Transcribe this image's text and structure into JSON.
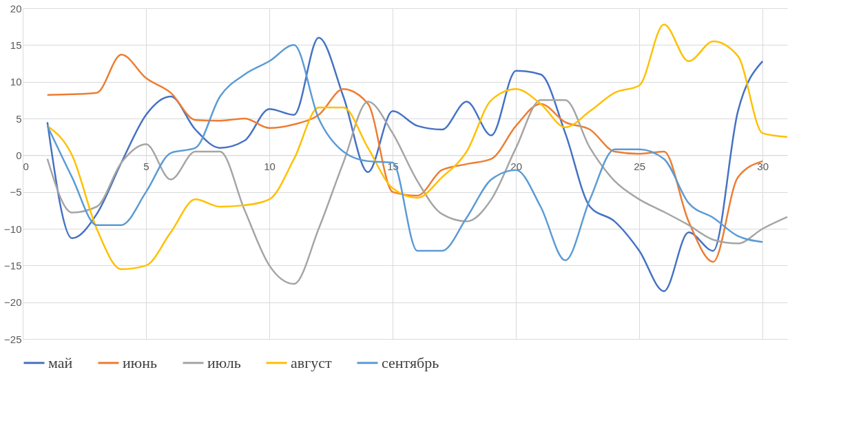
{
  "chart_data": {
    "type": "line",
    "x": [
      1,
      2,
      3,
      4,
      5,
      6,
      7,
      8,
      9,
      10,
      11,
      12,
      13,
      14,
      15,
      16,
      17,
      18,
      19,
      20,
      21,
      22,
      23,
      24,
      25,
      26,
      27,
      28,
      29,
      30,
      31
    ],
    "xlim": [
      0,
      31
    ],
    "xticks": [
      0,
      5,
      10,
      15,
      20,
      25,
      30
    ],
    "ylim": [
      -25,
      20
    ],
    "yticks": [
      -25,
      -20,
      -15,
      -10,
      -5,
      0,
      5,
      10,
      15,
      20
    ],
    "grid": true,
    "legend": "bottom",
    "marker": "none",
    "line_style": "solid",
    "series": [
      {
        "name": "май",
        "color": "#4472c4",
        "values": [
          4.5,
          -11.3,
          -8,
          -1,
          5.5,
          8,
          3.5,
          1,
          2,
          6.3,
          5.5,
          16,
          8,
          -2.3,
          6,
          4,
          3.5,
          7.3,
          2.7,
          11.5,
          11,
          3,
          -7,
          -9,
          -13,
          -18.5,
          -10.5,
          -13,
          6,
          12.8,
          null
        ]
      },
      {
        "name": "июнь",
        "color": "#ed7d31",
        "values": [
          8.2,
          8.3,
          8.5,
          13.7,
          10.5,
          8.5,
          4.8,
          4.7,
          5,
          3.7,
          4.2,
          5.5,
          9,
          7,
          -5,
          -5.5,
          -2,
          -1.2,
          -0.5,
          4,
          7,
          4.5,
          3.5,
          0.5,
          0.2,
          0.5,
          -9,
          -14.5,
          -3,
          -0.8,
          null
        ]
      },
      {
        "name": "июль",
        "color": "#a5a5a5",
        "values": [
          -0.5,
          -7.8,
          -7,
          -1,
          1.5,
          -3.3,
          0.5,
          0.5,
          -7.5,
          -15,
          -17.5,
          -10,
          -1,
          7.3,
          3,
          -3.5,
          -8,
          -9,
          -6,
          1,
          7.5,
          7.5,
          1,
          -3.5,
          -6,
          -7.7,
          -9.5,
          -11.5,
          -12,
          -10,
          -8.4
        ]
      },
      {
        "name": "август",
        "color": "#ffc000",
        "values": [
          4,
          0,
          -10,
          -15.5,
          -15,
          -10.5,
          -6,
          -7,
          -6.8,
          -6,
          -0.5,
          6.5,
          6.5,
          1,
          -4.5,
          -5.8,
          -3,
          0.5,
          7.5,
          9,
          7,
          3.8,
          6,
          8.5,
          9.5,
          17.8,
          12.8,
          15.5,
          13.5,
          3,
          2.5
        ]
      },
      {
        "name": "сентябрь",
        "color": "#5b9bd5",
        "values": [
          4,
          -3,
          -9.5,
          -9.5,
          -5,
          0.3,
          1,
          8,
          11,
          12.8,
          15,
          5,
          0.5,
          -0.8,
          -1,
          -13,
          -13,
          -8.5,
          -3.3,
          -2,
          -7,
          -14.3,
          -6,
          0.8,
          0.8,
          -0.5,
          -6.5,
          -8.5,
          -11,
          -11.8,
          null
        ]
      }
    ]
  }
}
